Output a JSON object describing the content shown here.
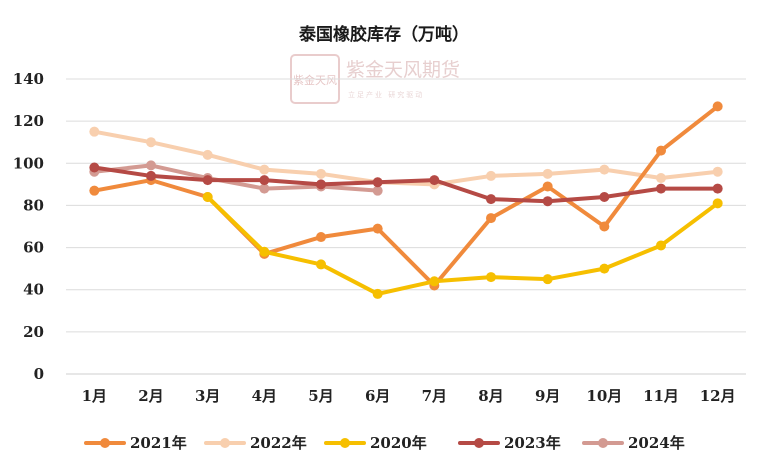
{
  "chart_data": {
    "type": "line",
    "title": "泰国橡胶库存（万吨）",
    "categories": [
      "1月",
      "2月",
      "3月",
      "4月",
      "5月",
      "6月",
      "7月",
      "8月",
      "9月",
      "10月",
      "11月",
      "12月"
    ],
    "ylim": [
      0,
      140
    ],
    "yticks": [
      0,
      20,
      40,
      60,
      80,
      100,
      120,
      140
    ],
    "grid": true,
    "legend_position": "bottom",
    "series": [
      {
        "name": "2021年",
        "color": "#f08a3c",
        "values": [
          87,
          92,
          84,
          57,
          65,
          69,
          42,
          74,
          89,
          70,
          106,
          127
        ]
      },
      {
        "name": "2022年",
        "color": "#f8cfae",
        "values": [
          115,
          110,
          104,
          97,
          95,
          91,
          90,
          94,
          95,
          97,
          93,
          96
        ]
      },
      {
        "name": "2020年",
        "color": "#f6bf00",
        "values": [
          null,
          null,
          84,
          58,
          52,
          38,
          44,
          46,
          45,
          50,
          61,
          81
        ]
      },
      {
        "name": "2023年",
        "color": "#b54a45",
        "values": [
          98,
          94,
          92,
          92,
          90,
          91,
          92,
          83,
          82,
          84,
          88,
          88
        ]
      },
      {
        "name": "2024年",
        "color": "#d39a92",
        "values": [
          96,
          99,
          93,
          88,
          89,
          87,
          null,
          null,
          null,
          null,
          null,
          null
        ]
      }
    ]
  },
  "watermark": {
    "logo_text": "紫金天风",
    "name": "紫金天风期货",
    "slogan": "立足产业 研究驱动"
  }
}
